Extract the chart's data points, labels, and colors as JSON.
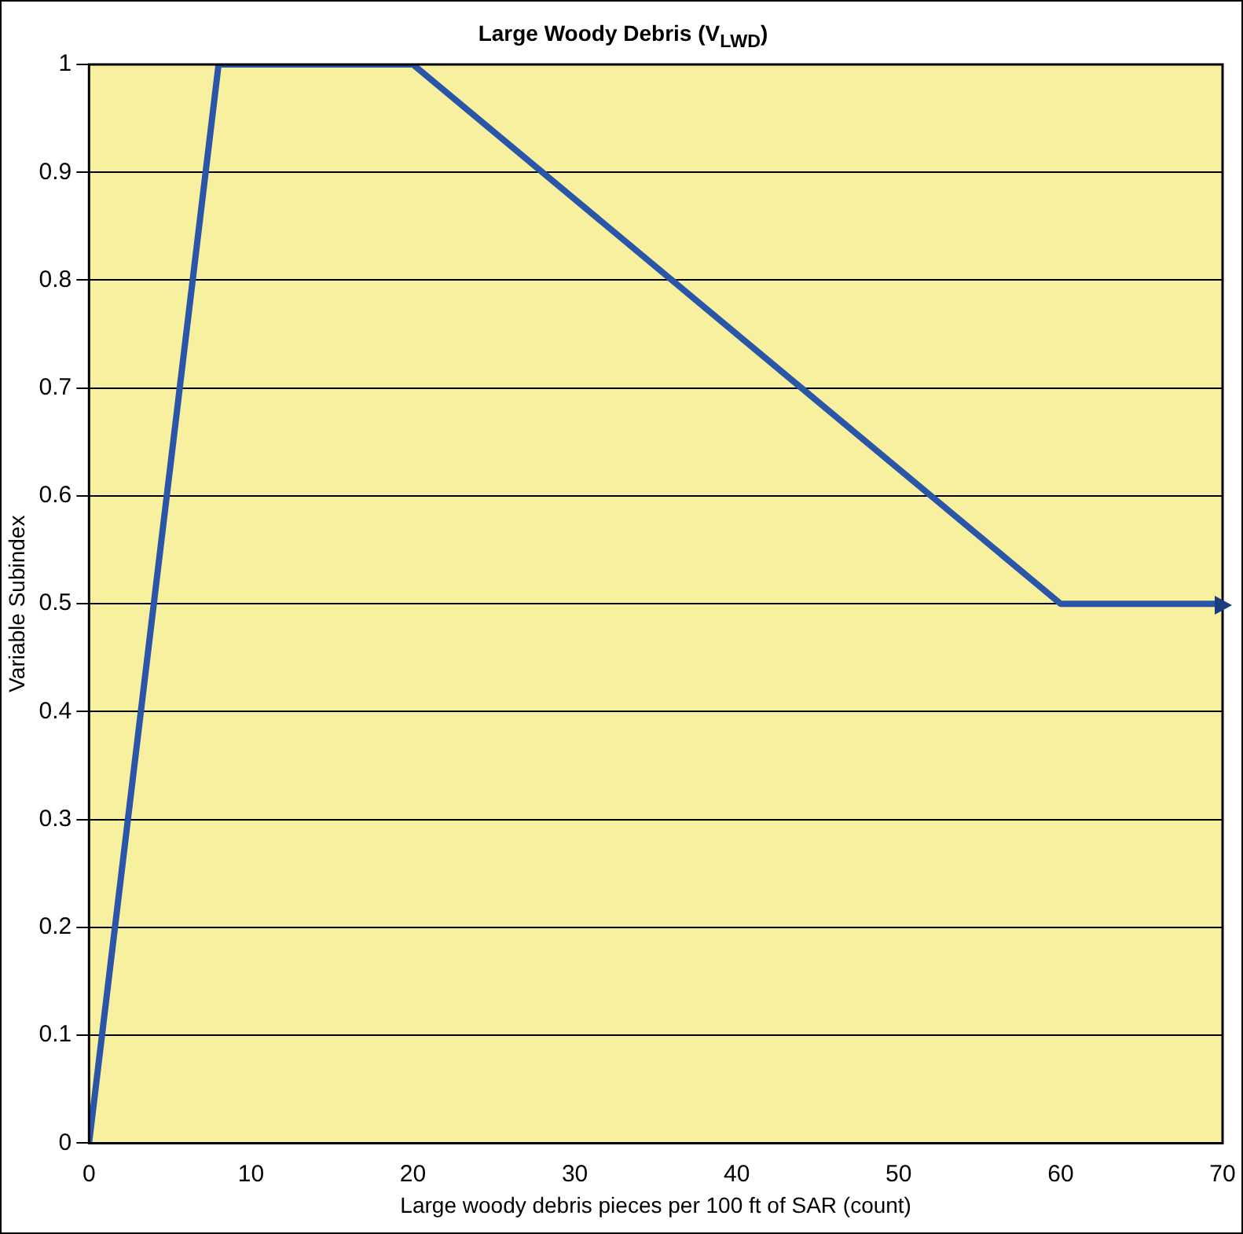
{
  "chart_data": {
    "type": "line",
    "title": "Large Woody Debris (V$_{LWD}$)",
    "xlabel": "Large woody debris pieces per 100 ft of SAR (count)",
    "ylabel": "Variable Subindex",
    "x": [
      0,
      8,
      20,
      60,
      70
    ],
    "series": [
      {
        "color": "#2b55a8",
        "values": [
          0,
          1,
          1,
          0.5,
          0.5
        ]
      }
    ],
    "xlim": [
      0,
      70
    ],
    "xticks": [
      0,
      10,
      20,
      30,
      40,
      50,
      60,
      70
    ],
    "ylim": [
      0,
      1
    ],
    "yticks": [
      0,
      0.1,
      0.2,
      0.3,
      0.4,
      0.5,
      0.6,
      0.7,
      0.8,
      0.9,
      1
    ],
    "grid": "y",
    "legend": false,
    "marker": "none",
    "line_style": "solid"
  }
}
